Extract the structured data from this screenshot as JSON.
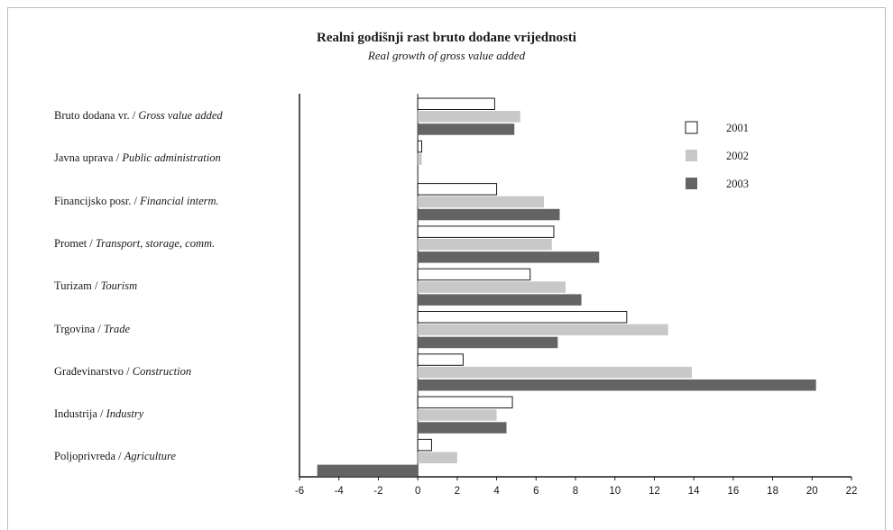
{
  "chart_data": {
    "type": "bar",
    "orientation": "horizontal",
    "title": "Realni godišnji rast bruto dodane vrijednosti",
    "subtitle": "Real growth of gross value added",
    "xlim": [
      -6,
      22
    ],
    "xticks": [
      -6,
      -4,
      -2,
      0,
      2,
      4,
      6,
      8,
      10,
      12,
      14,
      16,
      18,
      20,
      22
    ],
    "legend_position": "top-right",
    "categories": [
      {
        "hr": "Bruto dodana vr. / ",
        "en": "Gross value added"
      },
      {
        "hr": "Javna uprava / ",
        "en": "Public administration"
      },
      {
        "hr": "Financijsko posr. / ",
        "en": "Financial interm."
      },
      {
        "hr": "Promet / ",
        "en": "Transport, storage, comm."
      },
      {
        "hr": "Turizam / ",
        "en": "Tourism"
      },
      {
        "hr": "Trgovina / ",
        "en": "Trade"
      },
      {
        "hr": "Građevinarstvo / ",
        "en": "Construction"
      },
      {
        "hr": "Industrija / ",
        "en": "Industry"
      },
      {
        "hr": "Poljoprivreda / ",
        "en": "Agriculture"
      }
    ],
    "series": [
      {
        "name": "2001",
        "fill": "#ffffff",
        "stroke": "#1a1a1a",
        "values": [
          3.9,
          0.2,
          4.0,
          6.9,
          5.7,
          10.6,
          2.3,
          4.8,
          0.7
        ]
      },
      {
        "name": "2002",
        "fill": "#c8c8c8",
        "stroke": "none",
        "values": [
          5.2,
          0.2,
          6.4,
          6.8,
          7.5,
          12.7,
          13.9,
          4.0,
          2.0
        ]
      },
      {
        "name": "2003",
        "fill": "#646464",
        "stroke": "none",
        "values": [
          4.9,
          0,
          7.2,
          9.2,
          8.3,
          7.1,
          20.2,
          4.5,
          -5.1
        ]
      }
    ]
  }
}
